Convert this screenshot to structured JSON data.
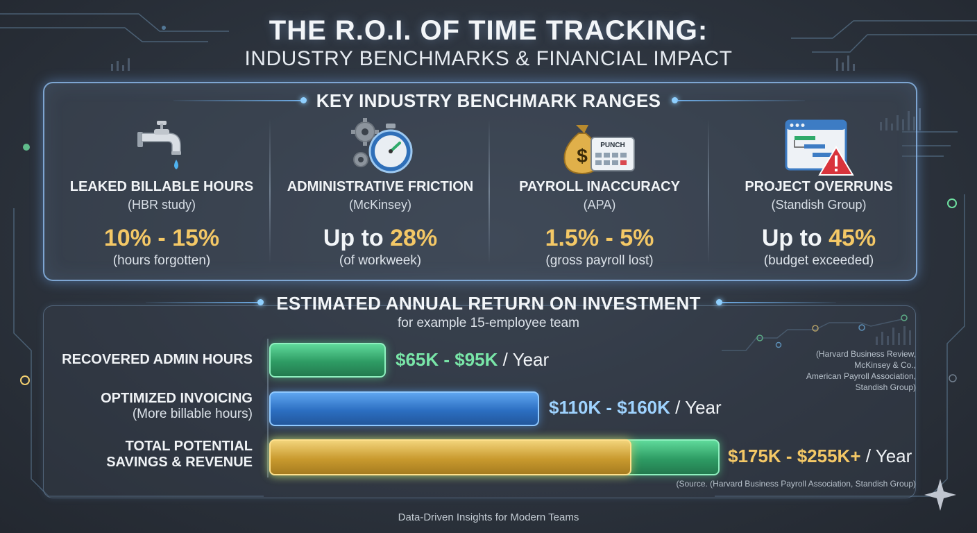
{
  "title": {
    "line1": "THE R.O.I. OF TIME TRACKING:",
    "line2": "INDUSTRY BENCHMARKS & FINANCIAL IMPACT"
  },
  "benchmarks": {
    "heading": "KEY INDUSTRY BENCHMARK RANGES",
    "items": [
      {
        "icon": "faucet-icon",
        "name": "LEAKED BILLABLE HOURS",
        "source": "(HBR study)",
        "prefix": "",
        "value": "10% - 15%",
        "note": "(hours forgotten)"
      },
      {
        "icon": "gears-stopwatch-icon",
        "name": "ADMINISTRATIVE FRICTION",
        "source": "(McKinsey)",
        "prefix": "Up to ",
        "value": "28%",
        "note": "(of workweek)"
      },
      {
        "icon": "money-bag-punch-clock-icon",
        "name": "PAYROLL INACCURACY",
        "source": "(APA)",
        "prefix": "",
        "value": "1.5% - 5%",
        "note": "(gross payroll lost)",
        "icon_text": "PUNCH"
      },
      {
        "icon": "gantt-warning-icon",
        "name": "PROJECT OVERRUNS",
        "source": "(Standish Group)",
        "prefix": "Up to ",
        "value": "45%",
        "note": "(budget exceeded)"
      }
    ]
  },
  "roi": {
    "heading": "ESTIMATED ANNUAL RETURN ON INVESTMENT",
    "subheading": "for example 15-employee team",
    "bars": [
      {
        "label": "RECOVERED ADMIN HOURS",
        "sub": "",
        "range": "$65K - $95K",
        "unit": " / Year",
        "low": 65,
        "high": 95
      },
      {
        "label": "OPTIMIZED INVOICING",
        "sub": "(More billable hours)",
        "range": "$110K - $160K",
        "unit": " / Year",
        "low": 110,
        "high": 160
      },
      {
        "label": "TOTAL POTENTIAL",
        "label2": "SAVINGS & REVENUE",
        "sub": "",
        "range": "$175K - $255K+",
        "unit": " / Year",
        "low": 175,
        "high": 255
      }
    ],
    "sources_note": [
      "(Harvard Business Review,",
      "McKinsey & Co.,",
      "American Payroll Association,",
      "Standish Group)"
    ],
    "source_line": "(Source. (Harvard Business Payroll Association, Standish Group)"
  },
  "footer": "Data-Driven Insights for Modern Teams",
  "colors": {
    "accent_gold": "#f4c866",
    "green": "#79e6a8",
    "blue": "#9fd3ff",
    "panel_glow": "#8fd0ff"
  }
}
